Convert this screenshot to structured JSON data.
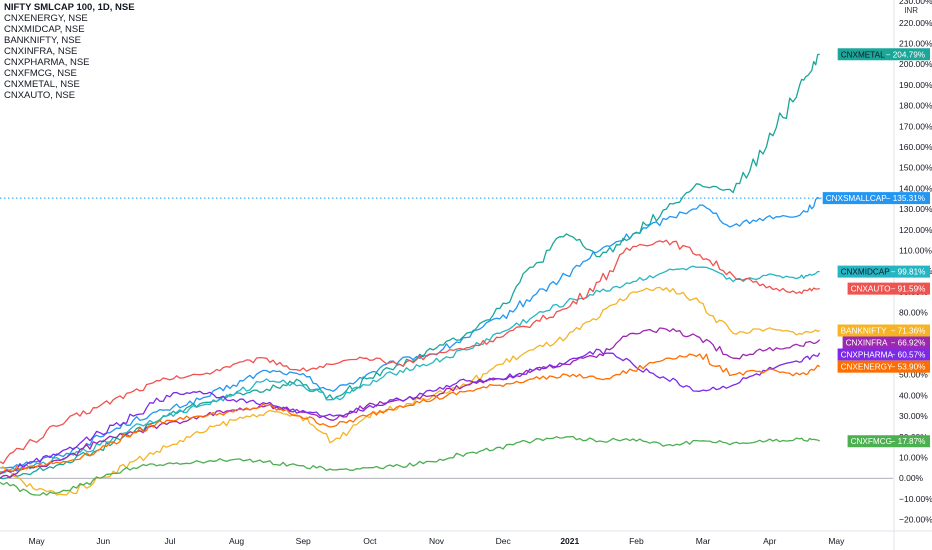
{
  "legend": {
    "main": "NIFTY SMLCAP 100, 1D, NSE",
    "items": [
      "CNXENERGY, NSE",
      "CNXMIDCAP, NSE",
      "BANKNIFTY, NSE",
      "CNXINFRA, NSE",
      "CNXPHARMA, NSE",
      "CNXFMCG, NSE",
      "CNXMETAL, NSE",
      "CNXAUTO, NSE"
    ]
  },
  "currency": "INR",
  "chart_data": {
    "type": "line",
    "x_ticks": [
      {
        "label": "May",
        "x": 0.55,
        "bold": false
      },
      {
        "label": "Jun",
        "x": 1.55,
        "bold": false
      },
      {
        "label": "Jul",
        "x": 2.55,
        "bold": false
      },
      {
        "label": "Aug",
        "x": 3.55,
        "bold": false
      },
      {
        "label": "Sep",
        "x": 4.55,
        "bold": false
      },
      {
        "label": "Oct",
        "x": 5.55,
        "bold": false
      },
      {
        "label": "Nov",
        "x": 6.55,
        "bold": false
      },
      {
        "label": "Dec",
        "x": 7.55,
        "bold": false
      },
      {
        "label": "2021",
        "x": 8.55,
        "bold": true
      },
      {
        "label": "Feb",
        "x": 9.55,
        "bold": false
      },
      {
        "label": "Mar",
        "x": 10.55,
        "bold": false
      },
      {
        "label": "Apr",
        "x": 11.55,
        "bold": false
      },
      {
        "label": "May",
        "x": 12.55,
        "bold": false
      }
    ],
    "xlim": [
      0,
      13.4
    ],
    "ylim": [
      -25,
      231
    ],
    "y_ticks": [
      -20,
      -10,
      0,
      10,
      20,
      30,
      40,
      50,
      60,
      70,
      80,
      90,
      100,
      110,
      120,
      130,
      140,
      150,
      160,
      170,
      180,
      190,
      200,
      210,
      220
    ],
    "y_tick_labels": [
      "−20.00%",
      "−10.00%",
      "0.00%",
      "10.00%",
      "20.00%",
      "30.00%",
      "40.00%",
      "50.00%",
      "60.00%",
      "70.00%",
      "80.00%",
      "90.00%",
      "100.00%",
      "110.00%",
      "120.00%",
      "130.00%",
      "140.00%",
      "150.00%",
      "160.00%",
      "170.00%",
      "180.00%",
      "190.00%",
      "200.00%",
      "210.00%",
      "220.00%"
    ],
    "top_cut_label": "230.00%",
    "zero_line": 0,
    "dotted_line": 135.31,
    "series": [
      {
        "name": "CNXSMALLCAP",
        "color": "#2196f3",
        "last": 135.31,
        "last_label": "135.31%",
        "x": [
          0,
          0.5,
          1.0,
          1.5,
          2.0,
          2.5,
          3.0,
          3.5,
          4.0,
          4.5,
          5.0,
          5.5,
          6.0,
          6.5,
          7.0,
          7.5,
          8.0,
          8.5,
          9.0,
          9.5,
          10.0,
          10.5,
          11.0,
          11.5,
          12.0,
          12.3
        ],
        "y": [
          5,
          8,
          12,
          20,
          28,
          33,
          38,
          45,
          52,
          50,
          42,
          50,
          57,
          60,
          68,
          77,
          88,
          98,
          110,
          118,
          125,
          132,
          122,
          126,
          127,
          135
        ]
      },
      {
        "name": "CNXMETAL",
        "color": "#1aa699",
        "last": 204.79,
        "last_label": "204.79%",
        "x": [
          0,
          0.5,
          1.0,
          1.5,
          2.0,
          2.5,
          3.0,
          3.5,
          4.0,
          4.5,
          5.0,
          5.5,
          6.0,
          6.5,
          7.0,
          7.5,
          8.0,
          8.5,
          9.0,
          9.5,
          10.0,
          10.5,
          11.0,
          11.5,
          12.0,
          12.3
        ],
        "y": [
          0,
          3,
          8,
          14,
          22,
          30,
          36,
          40,
          43,
          47,
          38,
          48,
          55,
          62,
          70,
          82,
          102,
          118,
          107,
          118,
          130,
          142,
          138,
          160,
          190,
          204.79
        ]
      },
      {
        "name": "CNXMIDCAP",
        "color": "#26b6c3",
        "last": 99.81,
        "last_label": "99.81%",
        "x": [
          0,
          0.5,
          1.0,
          1.5,
          2.0,
          2.5,
          3.0,
          3.5,
          4.0,
          4.5,
          5.0,
          5.5,
          6.0,
          6.5,
          7.0,
          7.5,
          8.0,
          8.5,
          9.0,
          9.5,
          10.0,
          10.5,
          11.0,
          11.5,
          12.0,
          12.3
        ],
        "y": [
          3,
          6,
          10,
          16,
          25,
          30,
          35,
          40,
          48,
          45,
          38,
          45,
          52,
          56,
          62,
          70,
          78,
          85,
          90,
          95,
          100,
          102,
          95,
          98,
          97,
          99.81
        ]
      },
      {
        "name": "CNXAUTO",
        "color": "#ef5350",
        "last": 91.59,
        "last_label": "91.59%",
        "x": [
          0,
          0.5,
          1.0,
          1.5,
          2.0,
          2.5,
          3.0,
          3.5,
          4.0,
          4.5,
          5.0,
          5.5,
          6.0,
          6.5,
          7.0,
          7.5,
          8.0,
          8.5,
          9.0,
          9.5,
          10.0,
          10.5,
          11.0,
          11.5,
          12.0,
          12.3
        ],
        "y": [
          8,
          18,
          28,
          35,
          42,
          48,
          50,
          55,
          58,
          52,
          55,
          58,
          55,
          60,
          63,
          68,
          75,
          82,
          95,
          112,
          115,
          108,
          98,
          92,
          90,
          91.59
        ]
      },
      {
        "name": "BANKNIFTY",
        "color": "#f5b325",
        "last": 71.36,
        "last_label": "71.36%",
        "x": [
          0,
          0.5,
          1.0,
          1.5,
          2.0,
          2.5,
          3.0,
          3.5,
          4.0,
          4.5,
          5.0,
          5.5,
          6.0,
          6.5,
          7.0,
          7.5,
          8.0,
          8.5,
          9.0,
          9.5,
          10.0,
          10.5,
          11.0,
          11.5,
          12.0,
          12.3
        ],
        "y": [
          5,
          -5,
          -8,
          0,
          8,
          15,
          22,
          28,
          32,
          30,
          18,
          30,
          35,
          40,
          45,
          55,
          62,
          68,
          78,
          90,
          92,
          85,
          70,
          72,
          70,
          71.36
        ]
      },
      {
        "name": "CNXINFRA",
        "color": "#9c27b0",
        "last": 66.92,
        "last_label": "66.92%",
        "x": [
          0,
          0.5,
          1.0,
          1.5,
          2.0,
          2.5,
          3.0,
          3.5,
          4.0,
          4.5,
          5.0,
          5.5,
          6.0,
          6.5,
          7.0,
          7.5,
          8.0,
          8.5,
          9.0,
          9.5,
          10.0,
          10.5,
          11.0,
          11.5,
          12.0,
          12.3
        ],
        "y": [
          0,
          5,
          10,
          18,
          22,
          26,
          30,
          33,
          35,
          32,
          28,
          35,
          38,
          40,
          45,
          48,
          52,
          55,
          60,
          70,
          72,
          68,
          58,
          62,
          64,
          66.92
        ]
      },
      {
        "name": "CNXPHARMA",
        "color": "#7c2ae8",
        "last": 60.57,
        "last_label": "60.57%",
        "x": [
          0,
          0.5,
          1.0,
          1.5,
          2.0,
          2.5,
          3.0,
          3.5,
          4.0,
          4.5,
          5.0,
          5.5,
          6.0,
          6.5,
          7.0,
          7.5,
          8.0,
          8.5,
          9.0,
          9.5,
          10.0,
          10.5,
          11.0,
          11.5,
          12.0,
          12.3
        ],
        "y": [
          2,
          8,
          14,
          22,
          30,
          40,
          42,
          38,
          36,
          32,
          30,
          34,
          38,
          42,
          47,
          48,
          52,
          56,
          62,
          55,
          48,
          42,
          45,
          52,
          56,
          60.57
        ]
      },
      {
        "name": "CNXENERGY",
        "color": "#ff6d00",
        "last": 53.9,
        "last_label": "53.90%",
        "x": [
          0,
          0.5,
          1.0,
          1.5,
          2.0,
          2.5,
          3.0,
          3.5,
          4.0,
          4.5,
          5.0,
          5.5,
          6.0,
          6.5,
          7.0,
          7.5,
          8.0,
          8.5,
          9.0,
          9.5,
          10.0,
          10.5,
          11.0,
          11.5,
          12.0,
          12.3
        ],
        "y": [
          3,
          6,
          8,
          14,
          22,
          28,
          30,
          32,
          35,
          30,
          25,
          30,
          35,
          38,
          42,
          45,
          48,
          50,
          48,
          52,
          58,
          60,
          50,
          52,
          50,
          53.9
        ]
      },
      {
        "name": "CNXFMCG",
        "color": "#4caf50",
        "last": 17.87,
        "last_label": "17.87%",
        "x": [
          0,
          0.5,
          1.0,
          1.5,
          2.0,
          2.5,
          3.0,
          3.5,
          4.0,
          4.5,
          5.0,
          5.5,
          6.0,
          6.5,
          7.0,
          7.5,
          8.0,
          8.5,
          9.0,
          9.5,
          10.0,
          10.5,
          11.0,
          11.5,
          12.0,
          12.3
        ],
        "y": [
          -2,
          -8,
          -6,
          0,
          5,
          7,
          8,
          9,
          8,
          6,
          4,
          5,
          6,
          8,
          12,
          15,
          18,
          20,
          18,
          19,
          16,
          18,
          17,
          18,
          19,
          17.87
        ]
      }
    ]
  }
}
